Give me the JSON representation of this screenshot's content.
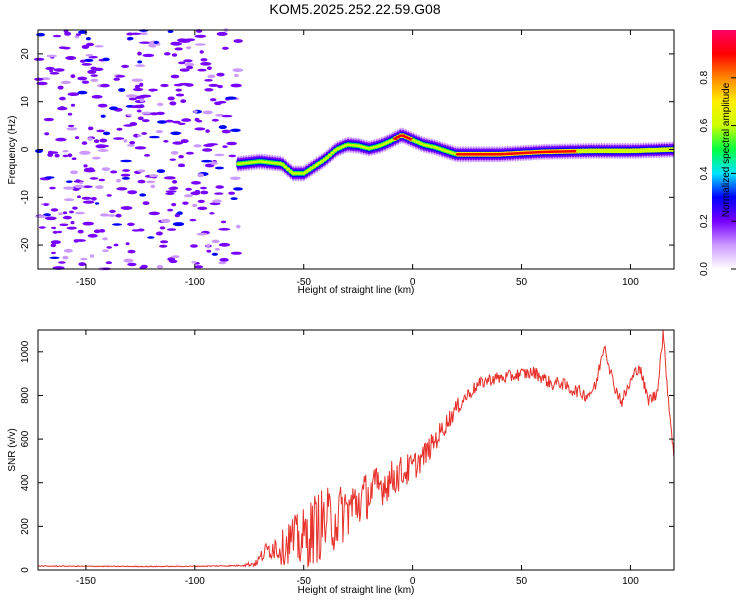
{
  "title": "KOM5.2025.252.22.59.G08",
  "chart_data": [
    {
      "type": "heatmap",
      "name": "spectrogram",
      "xlabel": "Height of straight line (km)",
      "ylabel": "Frequency (Hz)",
      "xlim": [
        -172,
        120
      ],
      "ylim": [
        -25,
        25
      ],
      "xticks": [
        -150,
        -100,
        -50,
        0,
        50,
        100
      ],
      "yticks": [
        -20,
        -10,
        0,
        10,
        20
      ],
      "ridge": {
        "x": [
          -80,
          -70,
          -60,
          -55,
          -50,
          -45,
          -40,
          -35,
          -30,
          -25,
          -20,
          -15,
          -10,
          -5,
          0,
          5,
          10,
          20,
          40,
          60,
          80,
          100,
          120
        ],
        "y": [
          -3,
          -2.5,
          -3,
          -5,
          -5,
          -3.5,
          -2,
          0,
          1,
          0.8,
          0.2,
          0.8,
          1.8,
          3,
          2,
          1,
          0.5,
          -1,
          -1,
          -0.5,
          -0.3,
          -0.3,
          0
        ]
      },
      "colorbar": {
        "label": "Normalized spectral amplitude",
        "ticks": [
          0.0,
          0.2,
          0.4,
          0.6,
          0.8
        ],
        "tick_labels": [
          "0.0",
          "0.2",
          "0.4",
          "0.6",
          "0.8"
        ],
        "range": [
          0,
          1
        ],
        "colors": [
          "#ffffff",
          "#cc99ff",
          "#7700ff",
          "#0000ff",
          "#00e5ff",
          "#00ff44",
          "#ccff00",
          "#ffee00",
          "#ff8800",
          "#ff0000",
          "#ff0066"
        ]
      },
      "noise_region": {
        "x_range": [
          -172,
          -80
        ],
        "y_range": [
          -25,
          25
        ]
      }
    },
    {
      "type": "line",
      "name": "snr",
      "xlabel": "Height of straight line (km)",
      "ylabel": "SNR (v/v)",
      "xlim": [
        -172,
        120
      ],
      "ylim": [
        0,
        1100
      ],
      "xticks": [
        -150,
        -100,
        -50,
        0,
        50,
        100
      ],
      "yticks": [
        0,
        200,
        400,
        600,
        800,
        1000
      ],
      "series": [
        {
          "name": "SNR",
          "color": "#e8302a",
          "x": [
            -172,
            -150,
            -120,
            -100,
            -80,
            -72,
            -68,
            -64,
            -60,
            -56,
            -52,
            -48,
            -44,
            -40,
            -36,
            -32,
            -28,
            -24,
            -20,
            -16,
            -12,
            -8,
            -4,
            0,
            4,
            8,
            12,
            16,
            20,
            24,
            28,
            32,
            36,
            40,
            44,
            48,
            52,
            56,
            60,
            64,
            68,
            72,
            76,
            80,
            84,
            88,
            92,
            96,
            100,
            104,
            108,
            112,
            115,
            118,
            120
          ],
          "y": [
            18,
            17,
            16,
            17,
            20,
            30,
            80,
            110,
            100,
            140,
            130,
            160,
            200,
            220,
            230,
            260,
            290,
            320,
            350,
            380,
            400,
            430,
            450,
            470,
            510,
            560,
            620,
            680,
            740,
            790,
            830,
            860,
            875,
            880,
            885,
            895,
            900,
            905,
            880,
            850,
            860,
            830,
            820,
            800,
            840,
            1040,
            860,
            770,
            860,
            940,
            780,
            800,
            1080,
            720,
            530
          ],
          "noise": [
            2,
            2,
            2,
            2,
            3,
            15,
            40,
            60,
            80,
            110,
            130,
            150,
            170,
            160,
            150,
            140,
            130,
            120,
            110,
            100,
            90,
            85,
            80,
            70,
            60,
            55,
            50,
            45,
            40,
            35,
            30,
            30,
            30,
            30,
            30,
            30,
            30,
            30,
            30,
            30,
            30,
            30,
            30,
            30,
            30,
            30,
            30,
            30,
            30,
            30,
            30,
            30,
            30,
            30,
            30
          ]
        }
      ]
    }
  ]
}
